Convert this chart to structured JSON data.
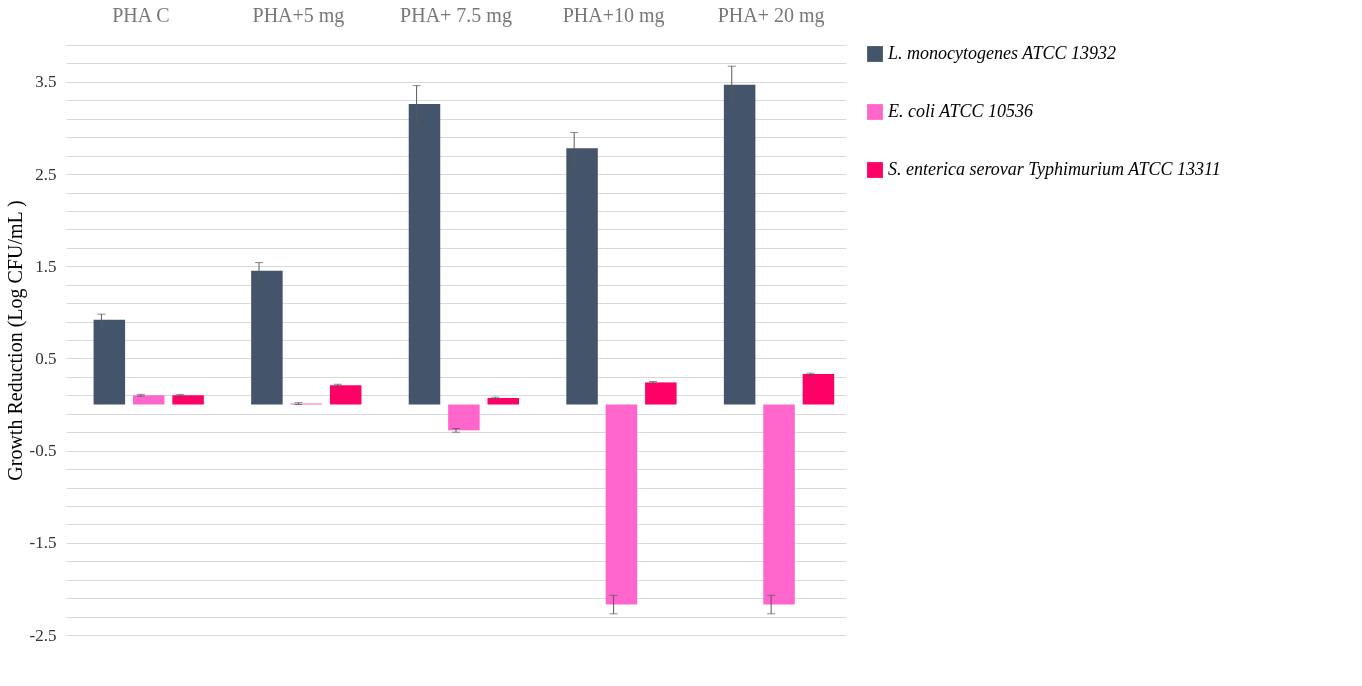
{
  "chart_data": {
    "type": "bar",
    "ylabel": "Growth Reduction  (Log CFU/mL )",
    "categories": [
      "PHA C",
      "PHA+5 mg",
      "PHA+ 7.5 mg",
      "PHA+10 mg",
      "PHA+ 20 mg"
    ],
    "series": [
      {
        "name": "L. monocytogenes  ATCC 13932",
        "color": "#44546a",
        "values": [
          0.92,
          1.45,
          3.26,
          2.78,
          3.47
        ],
        "errors": [
          0.06,
          0.09,
          0.2,
          0.17,
          0.2
        ]
      },
      {
        "name": "E. coli ATCC 10536",
        "color": "#ff66cc",
        "values": [
          0.1,
          0.01,
          -0.28,
          -2.17,
          -2.17
        ],
        "errors": [
          0.01,
          0.01,
          0.02,
          0.1,
          0.1
        ]
      },
      {
        "name": "S. enterica serovar Typhimurium ATCC 13311",
        "color": "#ff0066",
        "values": [
          0.1,
          0.21,
          0.07,
          0.24,
          0.33
        ],
        "errors": [
          0.01,
          0.01,
          0.01,
          0.01,
          0.01
        ]
      }
    ],
    "ylim": [
      -2.5,
      3.9
    ],
    "yticks": [
      -2.5,
      {
        "value": -2.3,
        "label": null
      },
      {
        "value": -2.1,
        "label": null
      },
      {
        "value": -1.9,
        "label": null
      },
      {
        "value": -1.7,
        "label": null
      },
      -1.5,
      {
        "value": -1.3,
        "label": null
      },
      {
        "value": -1.1,
        "label": null
      },
      {
        "value": -0.9,
        "label": null
      },
      {
        "value": -0.7,
        "label": null
      },
      -0.5,
      {
        "value": -0.3,
        "label": null
      },
      {
        "value": -0.1,
        "label": null
      },
      {
        "value": 0.1,
        "label": null
      },
      {
        "value": 0.3,
        "label": null
      },
      0.5,
      {
        "value": 0.7,
        "label": null
      },
      {
        "value": 0.9,
        "label": null
      },
      {
        "value": 1.1,
        "label": null
      },
      {
        "value": 1.3,
        "label": null
      },
      1.5,
      {
        "value": 1.7,
        "label": null
      },
      {
        "value": 1.9,
        "label": null
      },
      {
        "value": 2.1,
        "label": null
      },
      {
        "value": 2.3,
        "label": null
      },
      2.5,
      {
        "value": 2.7,
        "label": null
      },
      {
        "value": 2.9,
        "label": null
      },
      {
        "value": 3.1,
        "label": null
      },
      {
        "value": 3.3,
        "label": null
      },
      3.5,
      {
        "value": 3.7,
        "label": null
      },
      {
        "value": 3.9,
        "label": null
      }
    ],
    "grid": true,
    "legend": "right"
  }
}
